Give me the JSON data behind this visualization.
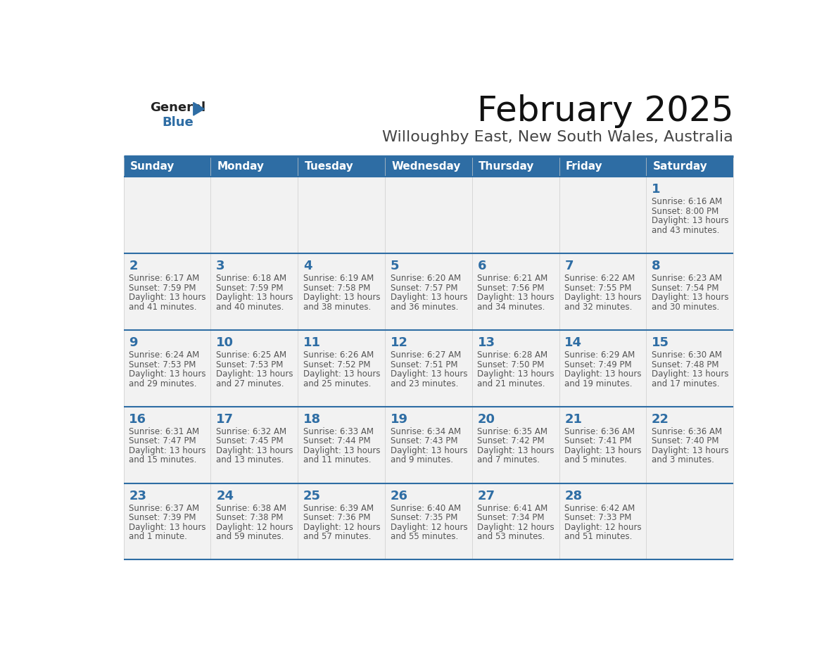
{
  "title": "February 2025",
  "subtitle": "Willoughby East, New South Wales, Australia",
  "header_color": "#2e6da4",
  "header_text_color": "#ffffff",
  "cell_bg": "#f2f2f2",
  "day_number_color": "#2e6da4",
  "text_color": "#555555",
  "border_color": "#2e6da4",
  "line_color": "#aaaaaa",
  "days_of_week": [
    "Sunday",
    "Monday",
    "Tuesday",
    "Wednesday",
    "Thursday",
    "Friday",
    "Saturday"
  ],
  "weeks": [
    [
      {
        "day": null,
        "sunrise": null,
        "sunset": null,
        "daylight": null
      },
      {
        "day": null,
        "sunrise": null,
        "sunset": null,
        "daylight": null
      },
      {
        "day": null,
        "sunrise": null,
        "sunset": null,
        "daylight": null
      },
      {
        "day": null,
        "sunrise": null,
        "sunset": null,
        "daylight": null
      },
      {
        "day": null,
        "sunrise": null,
        "sunset": null,
        "daylight": null
      },
      {
        "day": null,
        "sunrise": null,
        "sunset": null,
        "daylight": null
      },
      {
        "day": 1,
        "sunrise": "6:16 AM",
        "sunset": "8:00 PM",
        "daylight": "13 hours\nand 43 minutes."
      }
    ],
    [
      {
        "day": 2,
        "sunrise": "6:17 AM",
        "sunset": "7:59 PM",
        "daylight": "13 hours\nand 41 minutes."
      },
      {
        "day": 3,
        "sunrise": "6:18 AM",
        "sunset": "7:59 PM",
        "daylight": "13 hours\nand 40 minutes."
      },
      {
        "day": 4,
        "sunrise": "6:19 AM",
        "sunset": "7:58 PM",
        "daylight": "13 hours\nand 38 minutes."
      },
      {
        "day": 5,
        "sunrise": "6:20 AM",
        "sunset": "7:57 PM",
        "daylight": "13 hours\nand 36 minutes."
      },
      {
        "day": 6,
        "sunrise": "6:21 AM",
        "sunset": "7:56 PM",
        "daylight": "13 hours\nand 34 minutes."
      },
      {
        "day": 7,
        "sunrise": "6:22 AM",
        "sunset": "7:55 PM",
        "daylight": "13 hours\nand 32 minutes."
      },
      {
        "day": 8,
        "sunrise": "6:23 AM",
        "sunset": "7:54 PM",
        "daylight": "13 hours\nand 30 minutes."
      }
    ],
    [
      {
        "day": 9,
        "sunrise": "6:24 AM",
        "sunset": "7:53 PM",
        "daylight": "13 hours\nand 29 minutes."
      },
      {
        "day": 10,
        "sunrise": "6:25 AM",
        "sunset": "7:53 PM",
        "daylight": "13 hours\nand 27 minutes."
      },
      {
        "day": 11,
        "sunrise": "6:26 AM",
        "sunset": "7:52 PM",
        "daylight": "13 hours\nand 25 minutes."
      },
      {
        "day": 12,
        "sunrise": "6:27 AM",
        "sunset": "7:51 PM",
        "daylight": "13 hours\nand 23 minutes."
      },
      {
        "day": 13,
        "sunrise": "6:28 AM",
        "sunset": "7:50 PM",
        "daylight": "13 hours\nand 21 minutes."
      },
      {
        "day": 14,
        "sunrise": "6:29 AM",
        "sunset": "7:49 PM",
        "daylight": "13 hours\nand 19 minutes."
      },
      {
        "day": 15,
        "sunrise": "6:30 AM",
        "sunset": "7:48 PM",
        "daylight": "13 hours\nand 17 minutes."
      }
    ],
    [
      {
        "day": 16,
        "sunrise": "6:31 AM",
        "sunset": "7:47 PM",
        "daylight": "13 hours\nand 15 minutes."
      },
      {
        "day": 17,
        "sunrise": "6:32 AM",
        "sunset": "7:45 PM",
        "daylight": "13 hours\nand 13 minutes."
      },
      {
        "day": 18,
        "sunrise": "6:33 AM",
        "sunset": "7:44 PM",
        "daylight": "13 hours\nand 11 minutes."
      },
      {
        "day": 19,
        "sunrise": "6:34 AM",
        "sunset": "7:43 PM",
        "daylight": "13 hours\nand 9 minutes."
      },
      {
        "day": 20,
        "sunrise": "6:35 AM",
        "sunset": "7:42 PM",
        "daylight": "13 hours\nand 7 minutes."
      },
      {
        "day": 21,
        "sunrise": "6:36 AM",
        "sunset": "7:41 PM",
        "daylight": "13 hours\nand 5 minutes."
      },
      {
        "day": 22,
        "sunrise": "6:36 AM",
        "sunset": "7:40 PM",
        "daylight": "13 hours\nand 3 minutes."
      }
    ],
    [
      {
        "day": 23,
        "sunrise": "6:37 AM",
        "sunset": "7:39 PM",
        "daylight": "13 hours\nand 1 minute."
      },
      {
        "day": 24,
        "sunrise": "6:38 AM",
        "sunset": "7:38 PM",
        "daylight": "12 hours\nand 59 minutes."
      },
      {
        "day": 25,
        "sunrise": "6:39 AM",
        "sunset": "7:36 PM",
        "daylight": "12 hours\nand 57 minutes."
      },
      {
        "day": 26,
        "sunrise": "6:40 AM",
        "sunset": "7:35 PM",
        "daylight": "12 hours\nand 55 minutes."
      },
      {
        "day": 27,
        "sunrise": "6:41 AM",
        "sunset": "7:34 PM",
        "daylight": "12 hours\nand 53 minutes."
      },
      {
        "day": 28,
        "sunrise": "6:42 AM",
        "sunset": "7:33 PM",
        "daylight": "12 hours\nand 51 minutes."
      },
      {
        "day": null,
        "sunrise": null,
        "sunset": null,
        "daylight": null
      }
    ]
  ],
  "logo_general_color": "#222222",
  "logo_blue_color": "#2e6da4",
  "logo_triangle_color": "#2e6da4",
  "title_fontsize": 36,
  "subtitle_fontsize": 16,
  "header_fontsize": 11,
  "day_number_fontsize": 13,
  "cell_text_fontsize": 8.5
}
